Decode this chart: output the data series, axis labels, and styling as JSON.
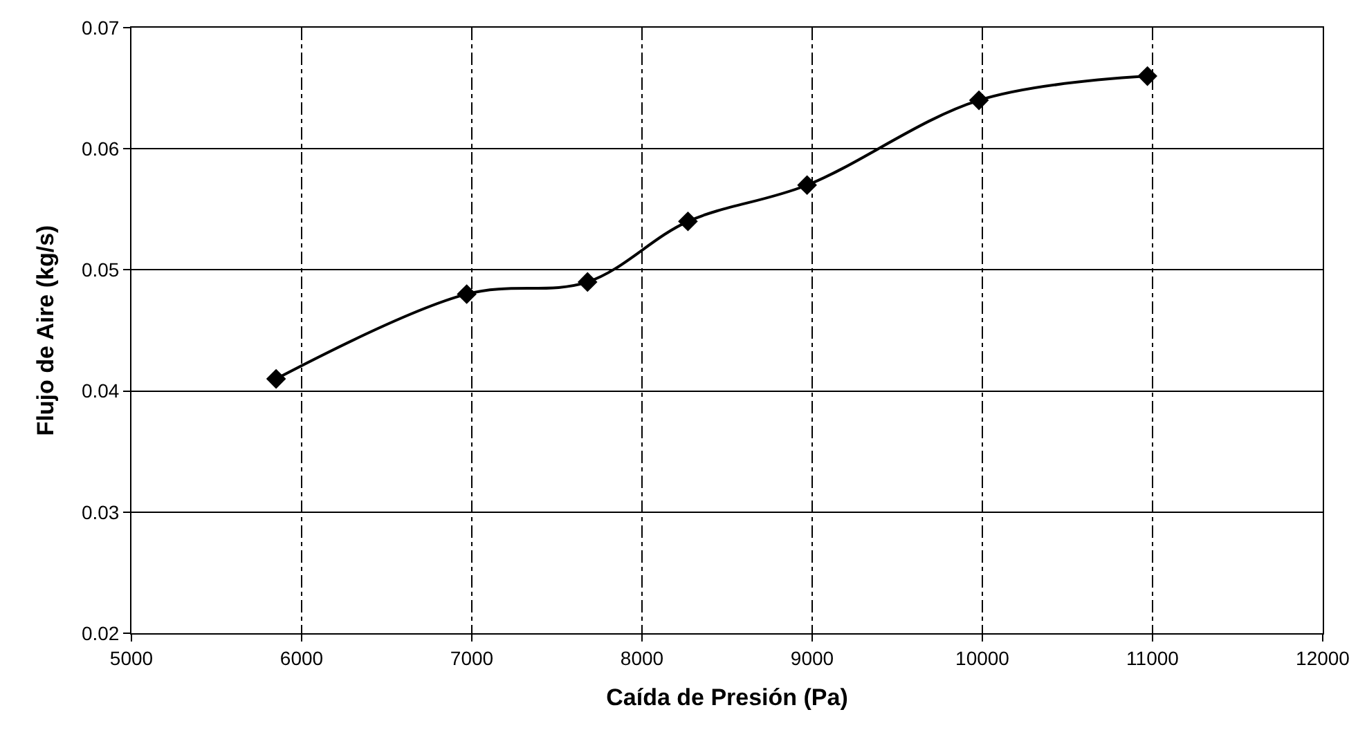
{
  "chart_data": {
    "type": "line",
    "xlabel": "Caída de Presión (Pa)",
    "ylabel": "Flujo de Aire (kg/s)",
    "x": [
      5850,
      6970,
      7680,
      8270,
      8970,
      9980,
      10970
    ],
    "series": [
      {
        "color": "#000000",
        "values": [
          0.041,
          0.048,
          0.049,
          0.054,
          0.057,
          0.064,
          0.066
        ]
      }
    ],
    "xlim": [
      5000,
      12000
    ],
    "xticks": [
      5000,
      6000,
      7000,
      8000,
      9000,
      10000,
      11000,
      12000
    ],
    "ylim": [
      0.02,
      0.07
    ],
    "yticks": [
      {
        "value": 0.02,
        "label": "0.02"
      },
      {
        "value": 0.03,
        "label": "0.03"
      },
      {
        "value": 0.04,
        "label": "0.04"
      },
      {
        "value": 0.05,
        "label": "0.05"
      },
      {
        "value": 0.06,
        "label": "0.06"
      },
      {
        "value": 0.07,
        "label": "0.07"
      }
    ],
    "grid": true,
    "marker": "diamond",
    "line_style": "solid"
  }
}
